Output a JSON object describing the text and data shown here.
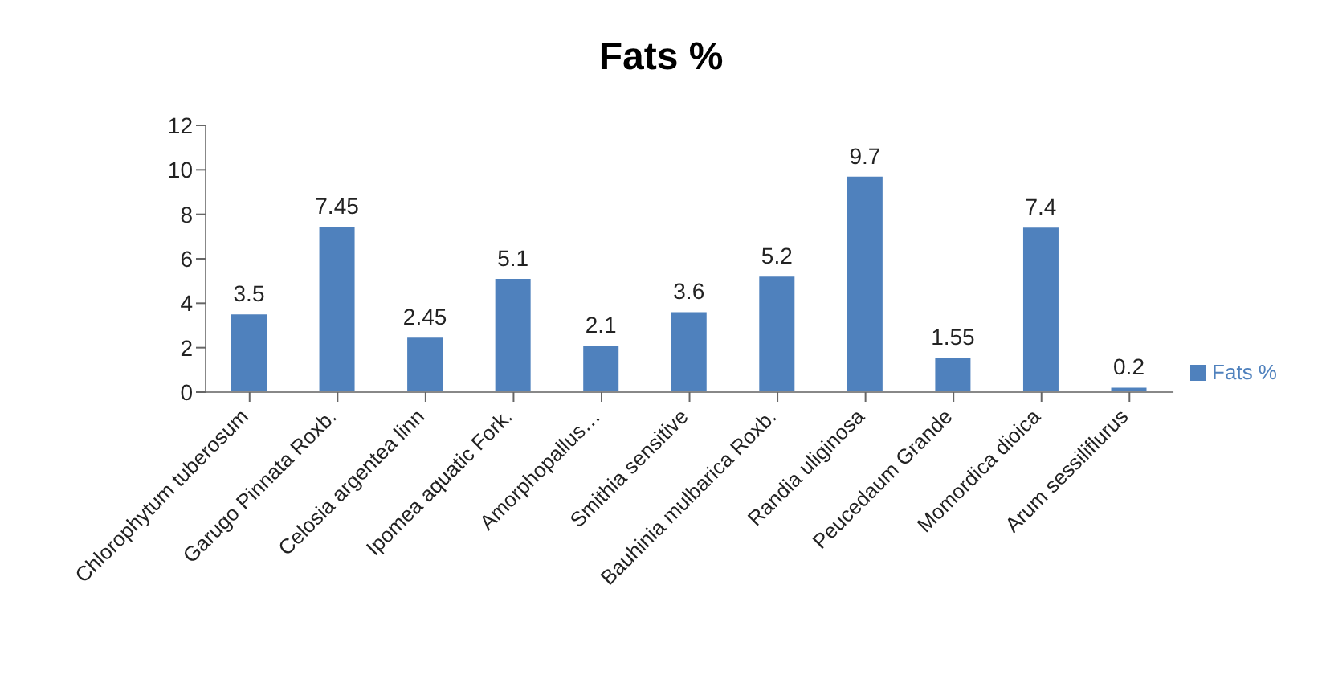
{
  "chart_data": {
    "type": "bar",
    "title": "Fats  %",
    "categories": [
      "Chlorophytum tuberosum",
      "Garugo Pinnata Roxb.",
      "Celosia argentea linn",
      "Ipomea aquatic Fork.",
      "Amorphopallus…",
      "Smithia sensitive",
      "Bauhinia mulbarica Roxb.",
      "Randia uliginosa",
      "Peucedaum Grande",
      "Momordica dioica",
      "Arum sessiliflurus"
    ],
    "series": [
      {
        "name": "Fats  %",
        "color": "#4f81bd",
        "values": [
          3.5,
          7.45,
          2.45,
          5.1,
          2.1,
          3.6,
          5.2,
          9.7,
          1.55,
          7.4,
          0.2
        ]
      }
    ],
    "ylim": [
      0,
      12
    ],
    "yticks": [
      0,
      2,
      4,
      6,
      8,
      10,
      12
    ],
    "grid": false,
    "legend": "right",
    "data_labels": true
  }
}
